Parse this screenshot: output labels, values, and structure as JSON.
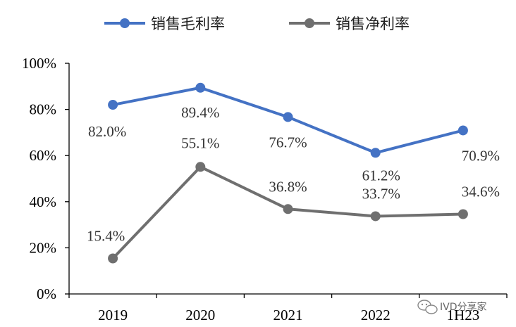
{
  "chart_data": {
    "type": "line",
    "categories": [
      "2019",
      "2020",
      "2021",
      "2022",
      "1H23"
    ],
    "y_tick_labels": [
      "0%",
      "20%",
      "40%",
      "60%",
      "80%",
      "100%"
    ],
    "ylim": [
      0,
      100
    ],
    "grid": false,
    "legend_position": "top",
    "series": [
      {
        "name": "销售毛利率",
        "color": "#4472C4",
        "values": [
          82.0,
          89.4,
          76.7,
          61.2,
          70.9
        ],
        "labels": [
          "82.0%",
          "89.4%",
          "76.7%",
          "61.2%",
          "70.9%"
        ]
      },
      {
        "name": "销售净利率",
        "color": "#6F6F6F",
        "values": [
          15.4,
          55.1,
          36.8,
          33.7,
          34.6
        ],
        "labels": [
          "15.4%",
          "55.1%",
          "36.8%",
          "33.7%",
          "34.6%"
        ]
      }
    ]
  },
  "watermark": {
    "text": "IVD分享家",
    "icon": "chat-bubble-icon"
  }
}
